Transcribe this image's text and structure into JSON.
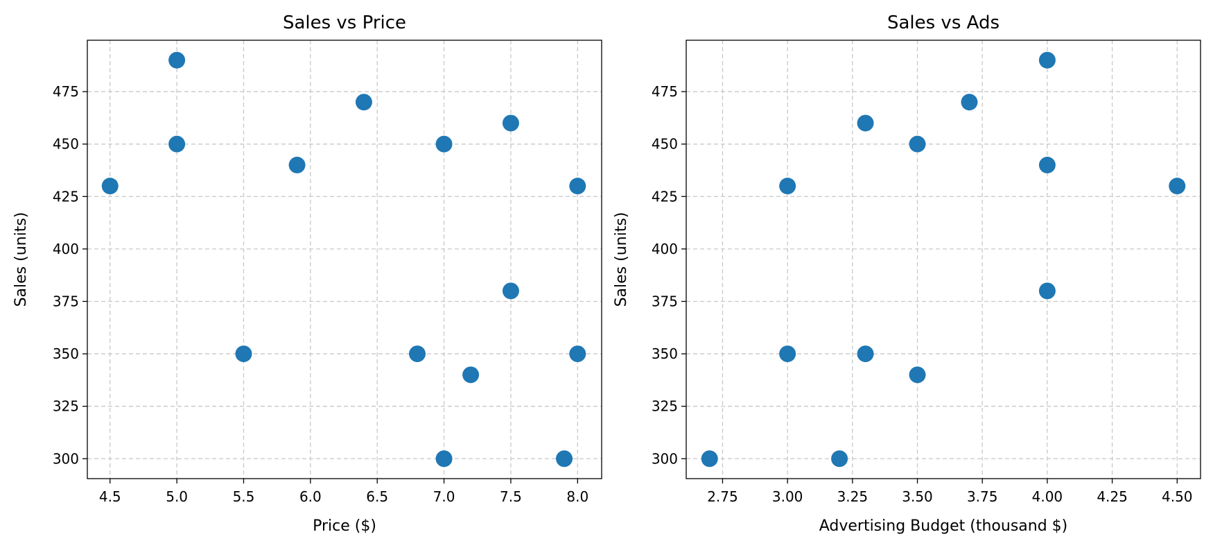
{
  "chart_data": [
    {
      "type": "scatter",
      "title": "Sales vs Price",
      "xlabel": "Price ($)",
      "ylabel": "Sales (units)",
      "xlim": [
        4.33,
        8.18
      ],
      "ylim": [
        290.5,
        499.5
      ],
      "xticks": [
        "4.5",
        "5.0",
        "5.5",
        "6.0",
        "6.5",
        "7.0",
        "7.5",
        "8.0"
      ],
      "xtick_values": [
        4.5,
        5.0,
        5.5,
        6.0,
        6.5,
        7.0,
        7.5,
        8.0
      ],
      "yticks": [
        "300",
        "325",
        "350",
        "375",
        "400",
        "425",
        "450",
        "475"
      ],
      "ytick_values": [
        300,
        325,
        350,
        375,
        400,
        425,
        450,
        475
      ],
      "grid": true,
      "color": "#1f77b4",
      "x": [
        4.5,
        5.0,
        5.0,
        5.5,
        5.9,
        6.4,
        6.8,
        7.0,
        7.0,
        7.2,
        7.5,
        7.5,
        7.9,
        8.0,
        8.0
      ],
      "y": [
        430,
        490,
        450,
        350,
        440,
        470,
        350,
        450,
        300,
        340,
        460,
        380,
        300,
        430,
        350
      ]
    },
    {
      "type": "scatter",
      "title": "Sales vs Ads",
      "xlabel": "Advertising Budget (thousand $)",
      "ylabel": "Sales (units)",
      "xlim": [
        2.61,
        4.59
      ],
      "ylim": [
        290.5,
        499.5
      ],
      "xticks": [
        "2.75",
        "3.00",
        "3.25",
        "3.50",
        "3.75",
        "4.00",
        "4.25",
        "4.50"
      ],
      "xtick_values": [
        2.75,
        3.0,
        3.25,
        3.5,
        3.75,
        4.0,
        4.25,
        4.5
      ],
      "yticks": [
        "300",
        "325",
        "350",
        "375",
        "400",
        "425",
        "450",
        "475"
      ],
      "ytick_values": [
        300,
        325,
        350,
        375,
        400,
        425,
        450,
        475
      ],
      "grid": true,
      "color": "#1f77b4",
      "x": [
        2.7,
        3.0,
        3.0,
        3.2,
        3.3,
        3.3,
        3.5,
        3.5,
        3.7,
        4.0,
        4.0,
        4.0,
        4.5
      ],
      "y": [
        300,
        430,
        350,
        300,
        460,
        350,
        450,
        340,
        470,
        490,
        440,
        380,
        430
      ]
    }
  ]
}
